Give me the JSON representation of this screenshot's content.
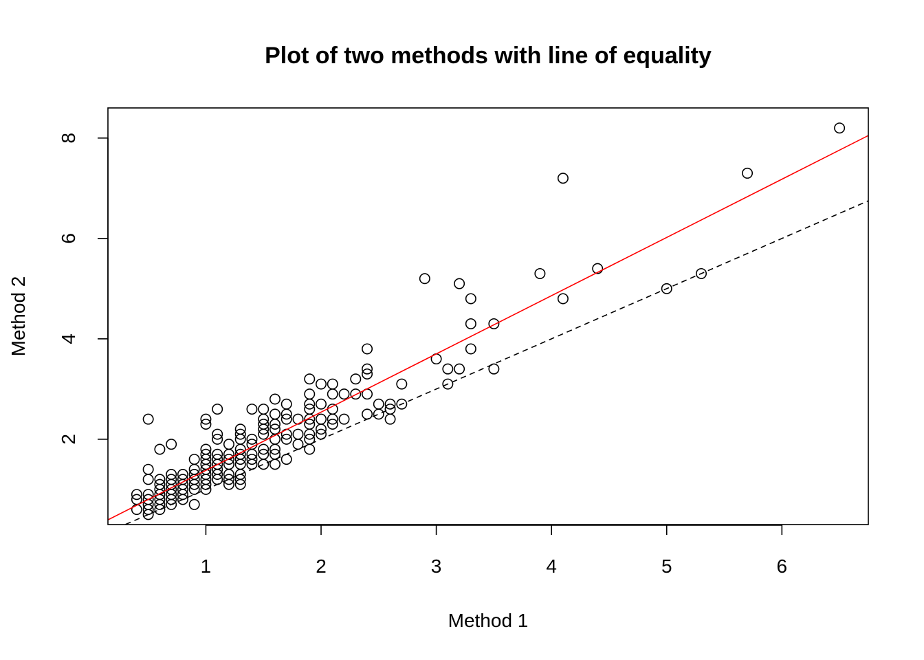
{
  "chart_data": {
    "type": "scatter",
    "title": "Plot of two methods with line of equality",
    "xlabel": "Method 1",
    "ylabel": "Method 2",
    "xlim": [
      0.15,
      6.75
    ],
    "ylim": [
      0.3,
      8.6
    ],
    "xticks": [
      "1",
      "2",
      "3",
      "4",
      "5",
      "6"
    ],
    "yticks": [
      "2",
      "4",
      "6",
      "8"
    ],
    "grid": false,
    "legend": "none",
    "colors": {
      "points": "#000000",
      "fit_line": "#ff0000",
      "equality_line": "#000000"
    },
    "fit_line": {
      "intercept": 0.22,
      "slope": 1.16
    },
    "equality_line": {
      "intercept": 0,
      "slope": 1
    },
    "points": [
      [
        0.4,
        0.6
      ],
      [
        0.4,
        0.8
      ],
      [
        0.4,
        0.9
      ],
      [
        0.5,
        0.5
      ],
      [
        0.5,
        0.6
      ],
      [
        0.5,
        0.7
      ],
      [
        0.5,
        0.8
      ],
      [
        0.5,
        0.9
      ],
      [
        0.5,
        1.2
      ],
      [
        0.5,
        1.4
      ],
      [
        0.5,
        2.4
      ],
      [
        0.6,
        0.6
      ],
      [
        0.6,
        0.7
      ],
      [
        0.6,
        0.8
      ],
      [
        0.6,
        0.9
      ],
      [
        0.6,
        1.0
      ],
      [
        0.6,
        1.1
      ],
      [
        0.6,
        1.2
      ],
      [
        0.6,
        1.8
      ],
      [
        0.7,
        0.7
      ],
      [
        0.7,
        0.8
      ],
      [
        0.7,
        0.9
      ],
      [
        0.7,
        1.0
      ],
      [
        0.7,
        1.1
      ],
      [
        0.7,
        1.2
      ],
      [
        0.7,
        1.3
      ],
      [
        0.7,
        1.9
      ],
      [
        0.8,
        0.8
      ],
      [
        0.8,
        0.9
      ],
      [
        0.8,
        1.0
      ],
      [
        0.8,
        1.1
      ],
      [
        0.8,
        1.2
      ],
      [
        0.8,
        1.3
      ],
      [
        0.9,
        0.7
      ],
      [
        0.9,
        1.0
      ],
      [
        0.9,
        1.1
      ],
      [
        0.9,
        1.2
      ],
      [
        0.9,
        1.3
      ],
      [
        0.9,
        1.4
      ],
      [
        0.9,
        1.6
      ],
      [
        1.0,
        1.0
      ],
      [
        1.0,
        1.1
      ],
      [
        1.0,
        1.2
      ],
      [
        1.0,
        1.3
      ],
      [
        1.0,
        1.4
      ],
      [
        1.0,
        1.5
      ],
      [
        1.0,
        1.6
      ],
      [
        1.0,
        1.7
      ],
      [
        1.0,
        1.8
      ],
      [
        1.0,
        2.3
      ],
      [
        1.0,
        2.4
      ],
      [
        1.1,
        1.2
      ],
      [
        1.1,
        1.3
      ],
      [
        1.1,
        1.4
      ],
      [
        1.1,
        1.5
      ],
      [
        1.1,
        1.6
      ],
      [
        1.1,
        1.7
      ],
      [
        1.1,
        2.0
      ],
      [
        1.1,
        2.1
      ],
      [
        1.1,
        2.6
      ],
      [
        1.2,
        1.1
      ],
      [
        1.2,
        1.2
      ],
      [
        1.2,
        1.3
      ],
      [
        1.2,
        1.5
      ],
      [
        1.2,
        1.6
      ],
      [
        1.2,
        1.7
      ],
      [
        1.2,
        1.9
      ],
      [
        1.3,
        1.1
      ],
      [
        1.3,
        1.2
      ],
      [
        1.3,
        1.3
      ],
      [
        1.3,
        1.5
      ],
      [
        1.3,
        1.6
      ],
      [
        1.3,
        1.7
      ],
      [
        1.3,
        1.8
      ],
      [
        1.3,
        2.0
      ],
      [
        1.3,
        2.1
      ],
      [
        1.3,
        2.2
      ],
      [
        1.4,
        1.5
      ],
      [
        1.4,
        1.6
      ],
      [
        1.4,
        1.7
      ],
      [
        1.4,
        1.9
      ],
      [
        1.4,
        2.0
      ],
      [
        1.4,
        2.6
      ],
      [
        1.5,
        1.5
      ],
      [
        1.5,
        1.7
      ],
      [
        1.5,
        1.8
      ],
      [
        1.5,
        2.1
      ],
      [
        1.5,
        2.2
      ],
      [
        1.5,
        2.3
      ],
      [
        1.5,
        2.4
      ],
      [
        1.5,
        2.6
      ],
      [
        1.6,
        1.5
      ],
      [
        1.6,
        1.7
      ],
      [
        1.6,
        1.8
      ],
      [
        1.6,
        2.0
      ],
      [
        1.6,
        2.2
      ],
      [
        1.6,
        2.3
      ],
      [
        1.6,
        2.5
      ],
      [
        1.6,
        2.8
      ],
      [
        1.7,
        1.6
      ],
      [
        1.7,
        2.0
      ],
      [
        1.7,
        2.1
      ],
      [
        1.7,
        2.4
      ],
      [
        1.7,
        2.5
      ],
      [
        1.7,
        2.7
      ],
      [
        1.8,
        1.9
      ],
      [
        1.8,
        2.1
      ],
      [
        1.8,
        2.4
      ],
      [
        1.9,
        1.8
      ],
      [
        1.9,
        2.0
      ],
      [
        1.9,
        2.1
      ],
      [
        1.9,
        2.3
      ],
      [
        1.9,
        2.4
      ],
      [
        1.9,
        2.6
      ],
      [
        1.9,
        2.7
      ],
      [
        1.9,
        2.9
      ],
      [
        1.9,
        3.2
      ],
      [
        2.0,
        2.1
      ],
      [
        2.0,
        2.2
      ],
      [
        2.0,
        2.4
      ],
      [
        2.0,
        2.7
      ],
      [
        2.0,
        3.1
      ],
      [
        2.1,
        2.3
      ],
      [
        2.1,
        2.4
      ],
      [
        2.1,
        2.6
      ],
      [
        2.1,
        2.9
      ],
      [
        2.1,
        3.1
      ],
      [
        2.2,
        2.4
      ],
      [
        2.2,
        2.9
      ],
      [
        2.3,
        2.9
      ],
      [
        2.3,
        3.2
      ],
      [
        2.4,
        2.5
      ],
      [
        2.4,
        2.9
      ],
      [
        2.4,
        3.3
      ],
      [
        2.4,
        3.4
      ],
      [
        2.4,
        3.8
      ],
      [
        2.5,
        2.5
      ],
      [
        2.5,
        2.7
      ],
      [
        2.6,
        2.4
      ],
      [
        2.6,
        2.6
      ],
      [
        2.6,
        2.7
      ],
      [
        2.7,
        2.7
      ],
      [
        2.7,
        3.1
      ],
      [
        2.9,
        5.2
      ],
      [
        3.0,
        3.6
      ],
      [
        3.1,
        3.1
      ],
      [
        3.1,
        3.4
      ],
      [
        3.2,
        3.4
      ],
      [
        3.2,
        5.1
      ],
      [
        3.3,
        3.8
      ],
      [
        3.3,
        4.3
      ],
      [
        3.3,
        4.8
      ],
      [
        3.5,
        3.4
      ],
      [
        3.5,
        4.3
      ],
      [
        3.9,
        5.3
      ],
      [
        4.1,
        4.8
      ],
      [
        4.1,
        7.2
      ],
      [
        4.4,
        5.4
      ],
      [
        5.0,
        5.0
      ],
      [
        5.3,
        5.3
      ],
      [
        5.7,
        7.3
      ],
      [
        6.5,
        8.2
      ]
    ]
  }
}
